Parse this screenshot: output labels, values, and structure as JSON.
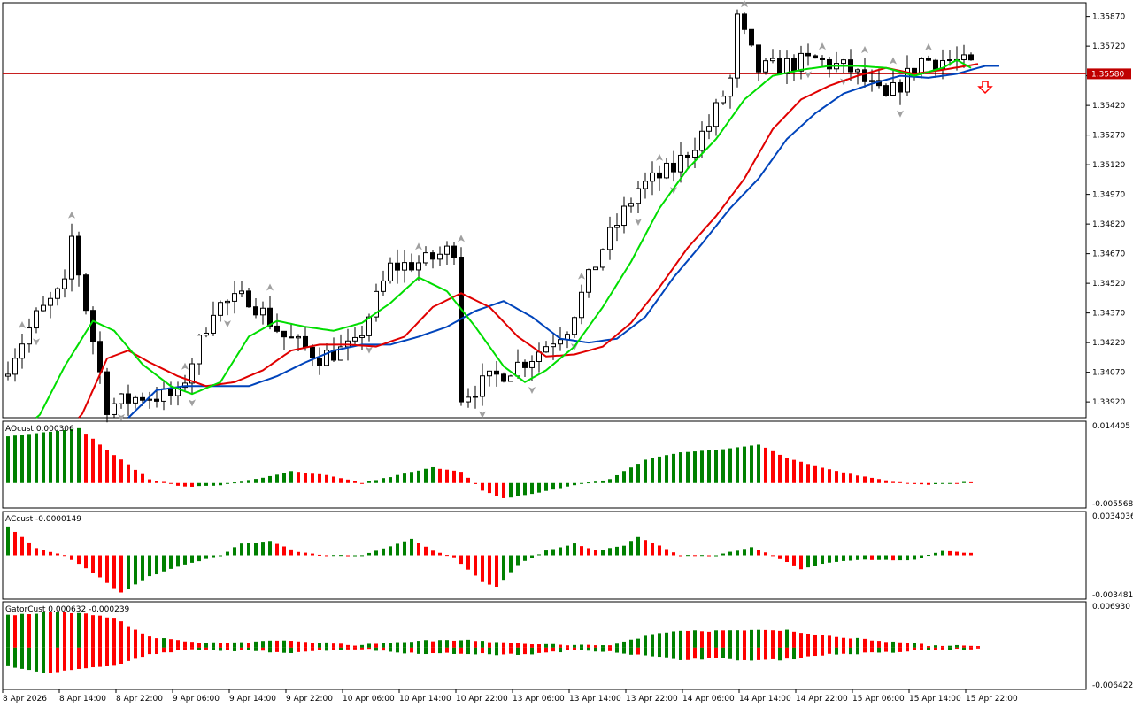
{
  "colors": {
    "background": "#ffffff",
    "frame": "#000000",
    "up_candle": "#ffffff",
    "down_candle": "#000000",
    "lips": "#00dd00",
    "teeth": "#e00000",
    "jaw": "#0044bb",
    "price_line": "#c00000",
    "hist_up": "#008000",
    "hist_down": "#ff0000",
    "fractal": "#a0a0a0",
    "sell_arrow": "#ff0000"
  },
  "price_axis": {
    "labels": [
      "1.35870",
      "1.35720",
      "1.35570",
      "1.35420",
      "1.35270",
      "1.35120",
      "1.34970",
      "1.34820",
      "1.34670",
      "1.34520",
      "1.34370",
      "1.34220",
      "1.34070",
      "1.33920"
    ],
    "current_price": "1.35580",
    "current_price_value": 1.3558
  },
  "time_axis": {
    "labels": [
      "8 Apr 2026",
      "8 Apr 14:00",
      "8 Apr 22:00",
      "9 Apr 06:00",
      "9 Apr 14:00",
      "9 Apr 22:00",
      "10 Apr 06:00",
      "10 Apr 14:00",
      "10 Apr 22:00",
      "13 Apr 06:00",
      "13 Apr 14:00",
      "13 Apr 22:00",
      "14 Apr 06:00",
      "14 Apr 14:00",
      "14 Apr 22:00",
      "15 Apr 06:00",
      "15 Apr 14:00",
      "15 Apr 22:00"
    ]
  },
  "panels": {
    "ao": {
      "label": "AOcust 0.000306",
      "max_label": "0.014405",
      "min_label": "-0.005568"
    },
    "ac": {
      "label": "ACcust -0.0000149",
      "max_label": "0.0034036",
      "min_label": "-0.0034811"
    },
    "gator": {
      "label": "GatorCust 0.000632 -0.000239",
      "max_label": "0.006930",
      "min_label": "-0.006422"
    }
  },
  "chart_data": {
    "type": "candlestick",
    "timeframe_bars": 137,
    "ylim": [
      1.3384,
      1.3594
    ],
    "price_anchors": [
      [
        0,
        1.3405
      ],
      [
        5,
        1.3435
      ],
      [
        9,
        1.345
      ],
      [
        10,
        1.3475
      ],
      [
        12,
        1.344
      ],
      [
        15,
        1.339
      ],
      [
        20,
        1.3395
      ],
      [
        25,
        1.3395
      ],
      [
        30,
        1.344
      ],
      [
        35,
        1.3445
      ],
      [
        40,
        1.3425
      ],
      [
        45,
        1.3415
      ],
      [
        50,
        1.342
      ],
      [
        55,
        1.346
      ],
      [
        60,
        1.3463
      ],
      [
        64,
        1.347
      ],
      [
        65,
        1.3395
      ],
      [
        70,
        1.3405
      ],
      [
        75,
        1.3415
      ],
      [
        80,
        1.343
      ],
      [
        85,
        1.347
      ],
      [
        90,
        1.35
      ],
      [
        95,
        1.351
      ],
      [
        100,
        1.3532
      ],
      [
        103,
        1.3555
      ],
      [
        104,
        1.3585
      ],
      [
        107,
        1.356
      ],
      [
        115,
        1.3565
      ],
      [
        120,
        1.356
      ],
      [
        125,
        1.3545
      ],
      [
        130,
        1.3565
      ],
      [
        134,
        1.3565
      ],
      [
        137,
        1.3562
      ]
    ],
    "lips_anchors": [
      [
        4,
        1.3382
      ],
      [
        8,
        1.341
      ],
      [
        12,
        1.3433
      ],
      [
        15,
        1.3428
      ],
      [
        19,
        1.3411
      ],
      [
        23,
        1.34
      ],
      [
        26,
        1.3396
      ],
      [
        30,
        1.3402
      ],
      [
        34,
        1.3425
      ],
      [
        38,
        1.3433
      ],
      [
        42,
        1.343
      ],
      [
        46,
        1.3428
      ],
      [
        50,
        1.3432
      ],
      [
        54,
        1.3442
      ],
      [
        58,
        1.3455
      ],
      [
        62,
        1.3448
      ],
      [
        66,
        1.343
      ],
      [
        70,
        1.341
      ],
      [
        73,
        1.3402
      ],
      [
        76,
        1.3408
      ],
      [
        80,
        1.342
      ],
      [
        84,
        1.344
      ],
      [
        88,
        1.3463
      ],
      [
        92,
        1.349
      ],
      [
        96,
        1.351
      ],
      [
        100,
        1.3525
      ],
      [
        104,
        1.3545
      ],
      [
        108,
        1.3557
      ],
      [
        112,
        1.356
      ],
      [
        116,
        1.3562
      ],
      [
        120,
        1.3562
      ],
      [
        124,
        1.3561
      ],
      [
        128,
        1.3557
      ],
      [
        132,
        1.3561
      ],
      [
        134,
        1.3565
      ],
      [
        136,
        1.3561
      ]
    ],
    "teeth_anchors": [
      [
        10,
        1.3382
      ],
      [
        14,
        1.3414
      ],
      [
        17,
        1.3418
      ],
      [
        20,
        1.3412
      ],
      [
        24,
        1.3405
      ],
      [
        28,
        1.34
      ],
      [
        32,
        1.3402
      ],
      [
        36,
        1.3408
      ],
      [
        40,
        1.3418
      ],
      [
        44,
        1.3421
      ],
      [
        48,
        1.3421
      ],
      [
        52,
        1.342
      ],
      [
        56,
        1.3425
      ],
      [
        60,
        1.344
      ],
      [
        64,
        1.3447
      ],
      [
        68,
        1.344
      ],
      [
        72,
        1.3425
      ],
      [
        76,
        1.3415
      ],
      [
        80,
        1.3416
      ],
      [
        84,
        1.342
      ],
      [
        88,
        1.3432
      ],
      [
        92,
        1.345
      ],
      [
        96,
        1.347
      ],
      [
        100,
        1.3486
      ],
      [
        104,
        1.3505
      ],
      [
        108,
        1.353
      ],
      [
        112,
        1.3545
      ],
      [
        116,
        1.3552
      ],
      [
        120,
        1.3557
      ],
      [
        124,
        1.3561
      ],
      [
        128,
        1.3558
      ],
      [
        132,
        1.356
      ],
      [
        137,
        1.3563
      ]
    ],
    "jaw_anchors": [
      [
        17,
        1.3384
      ],
      [
        21,
        1.3398
      ],
      [
        25,
        1.34
      ],
      [
        30,
        1.34
      ],
      [
        34,
        1.34
      ],
      [
        38,
        1.3405
      ],
      [
        42,
        1.3412
      ],
      [
        46,
        1.3418
      ],
      [
        50,
        1.3421
      ],
      [
        54,
        1.3421
      ],
      [
        58,
        1.3425
      ],
      [
        62,
        1.343
      ],
      [
        66,
        1.3438
      ],
      [
        70,
        1.3443
      ],
      [
        74,
        1.3435
      ],
      [
        78,
        1.3424
      ],
      [
        82,
        1.3422
      ],
      [
        86,
        1.3424
      ],
      [
        90,
        1.3435
      ],
      [
        94,
        1.3455
      ],
      [
        98,
        1.3472
      ],
      [
        102,
        1.349
      ],
      [
        106,
        1.3505
      ],
      [
        110,
        1.3525
      ],
      [
        114,
        1.3538
      ],
      [
        118,
        1.3548
      ],
      [
        122,
        1.3553
      ],
      [
        126,
        1.3557
      ],
      [
        130,
        1.3556
      ],
      [
        134,
        1.3558
      ],
      [
        138,
        1.3562
      ],
      [
        140,
        1.3562
      ]
    ],
    "ao_anchors": [
      [
        0,
        0.012
      ],
      [
        10,
        0.0142
      ],
      [
        13,
        0.01
      ],
      [
        16,
        0.006
      ],
      [
        20,
        0.001
      ],
      [
        25,
        -0.001
      ],
      [
        30,
        -0.0005
      ],
      [
        35,
        0.001
      ],
      [
        40,
        0.003
      ],
      [
        45,
        0.002
      ],
      [
        50,
        0.0
      ],
      [
        55,
        0.002
      ],
      [
        60,
        0.004
      ],
      [
        64,
        0.003
      ],
      [
        67,
        -0.002
      ],
      [
        70,
        -0.004
      ],
      [
        75,
        -0.0025
      ],
      [
        80,
        -0.0005
      ],
      [
        85,
        0.001
      ],
      [
        90,
        0.006
      ],
      [
        95,
        0.008
      ],
      [
        100,
        0.0085
      ],
      [
        104,
        0.0095
      ],
      [
        106,
        0.01
      ],
      [
        110,
        0.0065
      ],
      [
        115,
        0.004
      ],
      [
        120,
        0.002
      ],
      [
        125,
        0.0003
      ],
      [
        130,
        -0.0005
      ],
      [
        136,
        0.0003
      ]
    ],
    "ac_anchors": [
      [
        0,
        0.0025
      ],
      [
        4,
        0.0006
      ],
      [
        8,
        0.0
      ],
      [
        12,
        -0.0015
      ],
      [
        16,
        -0.0032
      ],
      [
        20,
        -0.0018
      ],
      [
        25,
        -0.0008
      ],
      [
        30,
        0.0
      ],
      [
        33,
        0.001
      ],
      [
        37,
        0.0012
      ],
      [
        41,
        0.0003
      ],
      [
        45,
        0.0
      ],
      [
        50,
        0.0
      ],
      [
        53,
        0.0006
      ],
      [
        57,
        0.0014
      ],
      [
        60,
        0.0004
      ],
      [
        63,
        -0.0002
      ],
      [
        67,
        -0.0023
      ],
      [
        69,
        -0.0027
      ],
      [
        72,
        -0.0008
      ],
      [
        76,
        0.0004
      ],
      [
        80,
        0.001
      ],
      [
        83,
        0.0004
      ],
      [
        87,
        0.0008
      ],
      [
        89,
        0.0016
      ],
      [
        92,
        0.0008
      ],
      [
        95,
        0.0
      ],
      [
        100,
        0.0
      ],
      [
        105,
        0.0007
      ],
      [
        108,
        0.0
      ],
      [
        112,
        -0.0012
      ],
      [
        116,
        -0.0006
      ],
      [
        120,
        -0.0004
      ],
      [
        124,
        -0.0004
      ],
      [
        128,
        -0.0004
      ],
      [
        132,
        0.0004
      ],
      [
        136,
        0.0002
      ]
    ],
    "gator_up_anchors": [
      [
        0,
        0.0055
      ],
      [
        5,
        0.006
      ],
      [
        10,
        0.006
      ],
      [
        15,
        0.005
      ],
      [
        20,
        0.0018
      ],
      [
        25,
        0.001
      ],
      [
        30,
        0.0008
      ],
      [
        35,
        0.001
      ],
      [
        40,
        0.0012
      ],
      [
        45,
        0.0008
      ],
      [
        50,
        0.0004
      ],
      [
        55,
        0.001
      ],
      [
        60,
        0.0012
      ],
      [
        65,
        0.0014
      ],
      [
        70,
        0.0008
      ],
      [
        75,
        0.0006
      ],
      [
        80,
        0.0004
      ],
      [
        85,
        0.0004
      ],
      [
        90,
        0.002
      ],
      [
        95,
        0.003
      ],
      [
        100,
        0.0028
      ],
      [
        105,
        0.003
      ],
      [
        110,
        0.003
      ],
      [
        115,
        0.002
      ],
      [
        120,
        0.0016
      ],
      [
        125,
        0.001
      ],
      [
        130,
        0.0004
      ],
      [
        137,
        0.0004
      ]
    ],
    "gator_down_anchors": [
      [
        0,
        -0.003
      ],
      [
        5,
        -0.0045
      ],
      [
        10,
        -0.0035
      ],
      [
        15,
        -0.003
      ],
      [
        20,
        -0.0012
      ],
      [
        25,
        -0.0004
      ],
      [
        30,
        -0.0004
      ],
      [
        35,
        -0.0006
      ],
      [
        40,
        -0.0008
      ],
      [
        45,
        -0.0004
      ],
      [
        50,
        -0.0002
      ],
      [
        55,
        -0.0008
      ],
      [
        60,
        -0.001
      ],
      [
        65,
        -0.001
      ],
      [
        70,
        -0.0012
      ],
      [
        75,
        -0.001
      ],
      [
        80,
        -0.0004
      ],
      [
        85,
        -0.0006
      ],
      [
        90,
        -0.0014
      ],
      [
        95,
        -0.002
      ],
      [
        100,
        -0.0018
      ],
      [
        105,
        -0.0022
      ],
      [
        110,
        -0.002
      ],
      [
        115,
        -0.0012
      ],
      [
        120,
        -0.001
      ],
      [
        125,
        -0.0008
      ],
      [
        130,
        -0.0004
      ],
      [
        137,
        -0.0002
      ]
    ],
    "fractals_up": [
      2,
      9,
      25,
      37,
      58,
      64,
      81,
      92,
      104,
      115,
      121,
      125,
      130
    ],
    "fractals_down": [
      4,
      16,
      26,
      31,
      51,
      67,
      74,
      80,
      89,
      94,
      113,
      118,
      126
    ],
    "sell_arrow_bar": 138
  }
}
